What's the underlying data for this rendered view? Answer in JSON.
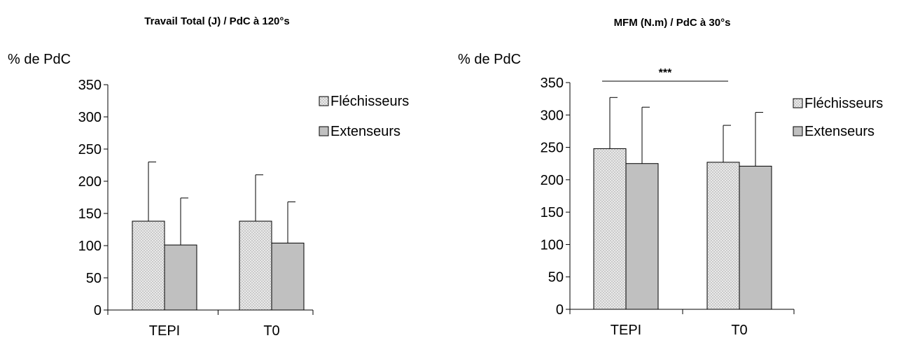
{
  "chart_data": [
    {
      "type": "bar",
      "title": "Travail Total (J) / PdC à 120°s",
      "ylabel": "% de PdC",
      "xlabel": "",
      "categories": [
        "TEPI",
        "T0"
      ],
      "ylim": [
        0,
        350
      ],
      "yticks": [
        "0",
        "50",
        "100",
        "150",
        "200",
        "250",
        "300",
        "350"
      ],
      "legend_position": "right",
      "error_bars": "upper only",
      "series": [
        {
          "name": "Fléchisseurs",
          "values": [
            138,
            138
          ],
          "errors": [
            92,
            72
          ],
          "fill": "#e4e4e4",
          "pattern": "crosshatch"
        },
        {
          "name": "Extenseurs",
          "values": [
            101,
            104
          ],
          "errors": [
            73,
            64
          ],
          "fill": "#c0c0c0"
        }
      ],
      "annotation": null
    },
    {
      "type": "bar",
      "title": "MFM (N.m) / PdC à 30°s",
      "ylabel": "% de PdC",
      "xlabel": "",
      "categories": [
        "TEPI",
        "T0"
      ],
      "ylim": [
        0,
        350
      ],
      "yticks": [
        "0",
        "50",
        "100",
        "150",
        "200",
        "250",
        "300",
        "350"
      ],
      "legend_position": "right",
      "error_bars": "upper only",
      "series": [
        {
          "name": "Fléchisseurs",
          "values": [
            248,
            227
          ],
          "errors": [
            79,
            57
          ],
          "fill": "#e4e4e4",
          "pattern": "crosshatch"
        },
        {
          "name": "Extenseurs",
          "values": [
            225,
            221
          ],
          "errors": [
            87,
            83
          ],
          "fill": "#c0c0c0"
        }
      ],
      "annotation": {
        "text": "***",
        "from_category": "TEPI",
        "to_category": "T0"
      }
    }
  ]
}
